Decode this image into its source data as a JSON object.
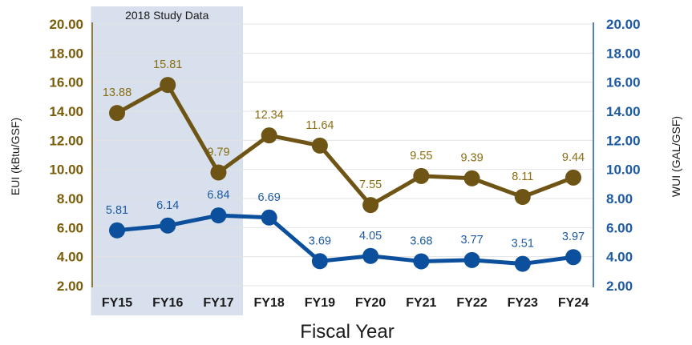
{
  "chart_data": {
    "type": "line",
    "title": "",
    "xlabel": "Fiscal Year",
    "categories": [
      "FY15",
      "FY16",
      "FY17",
      "FY18",
      "FY19",
      "FY20",
      "FY21",
      "FY22",
      "FY23",
      "FY24"
    ],
    "y_left": {
      "label": "EUI (kBtu/GSF)",
      "ticks": [
        "2.00",
        "4.00",
        "6.00",
        "8.00",
        "10.00",
        "12.00",
        "14.00",
        "16.00",
        "18.00",
        "20.00"
      ],
      "range": [
        2,
        20
      ],
      "color": "#7a5c0a"
    },
    "y_right": {
      "label": "WUI (GAL/GSF)",
      "ticks": [
        "2.00",
        "4.00",
        "6.00",
        "8.00",
        "10.00",
        "12.00",
        "14.00",
        "16.00",
        "18.00",
        "20.00"
      ],
      "range": [
        2,
        20
      ],
      "color": "#1d5aa0"
    },
    "series": [
      {
        "key": "eui",
        "values": [
          13.88,
          15.81,
          9.79,
          12.34,
          11.64,
          7.55,
          9.55,
          9.39,
          8.11,
          9.44
        ],
        "labels": [
          "13.88",
          "15.81",
          "9.79",
          "12.34",
          "11.64",
          "7.55",
          "9.55",
          "9.39",
          "8.11",
          "9.44"
        ],
        "color": "#6e5516",
        "label_color": "#8a6d12"
      },
      {
        "key": "wui",
        "values": [
          5.81,
          6.14,
          6.84,
          6.69,
          3.69,
          4.05,
          3.68,
          3.77,
          3.51,
          3.97
        ],
        "labels": [
          "5.81",
          "6.14",
          "6.84",
          "6.69",
          "3.69",
          "4.05",
          "3.68",
          "3.77",
          "3.51",
          "3.97"
        ],
        "color": "#0c4f9c",
        "label_color": "#1d5aa0"
      }
    ],
    "highlight": {
      "label": "2018 Study Data",
      "from": "FY15",
      "to": "FY17",
      "color": "#d7e0ec"
    },
    "grid": true
  }
}
